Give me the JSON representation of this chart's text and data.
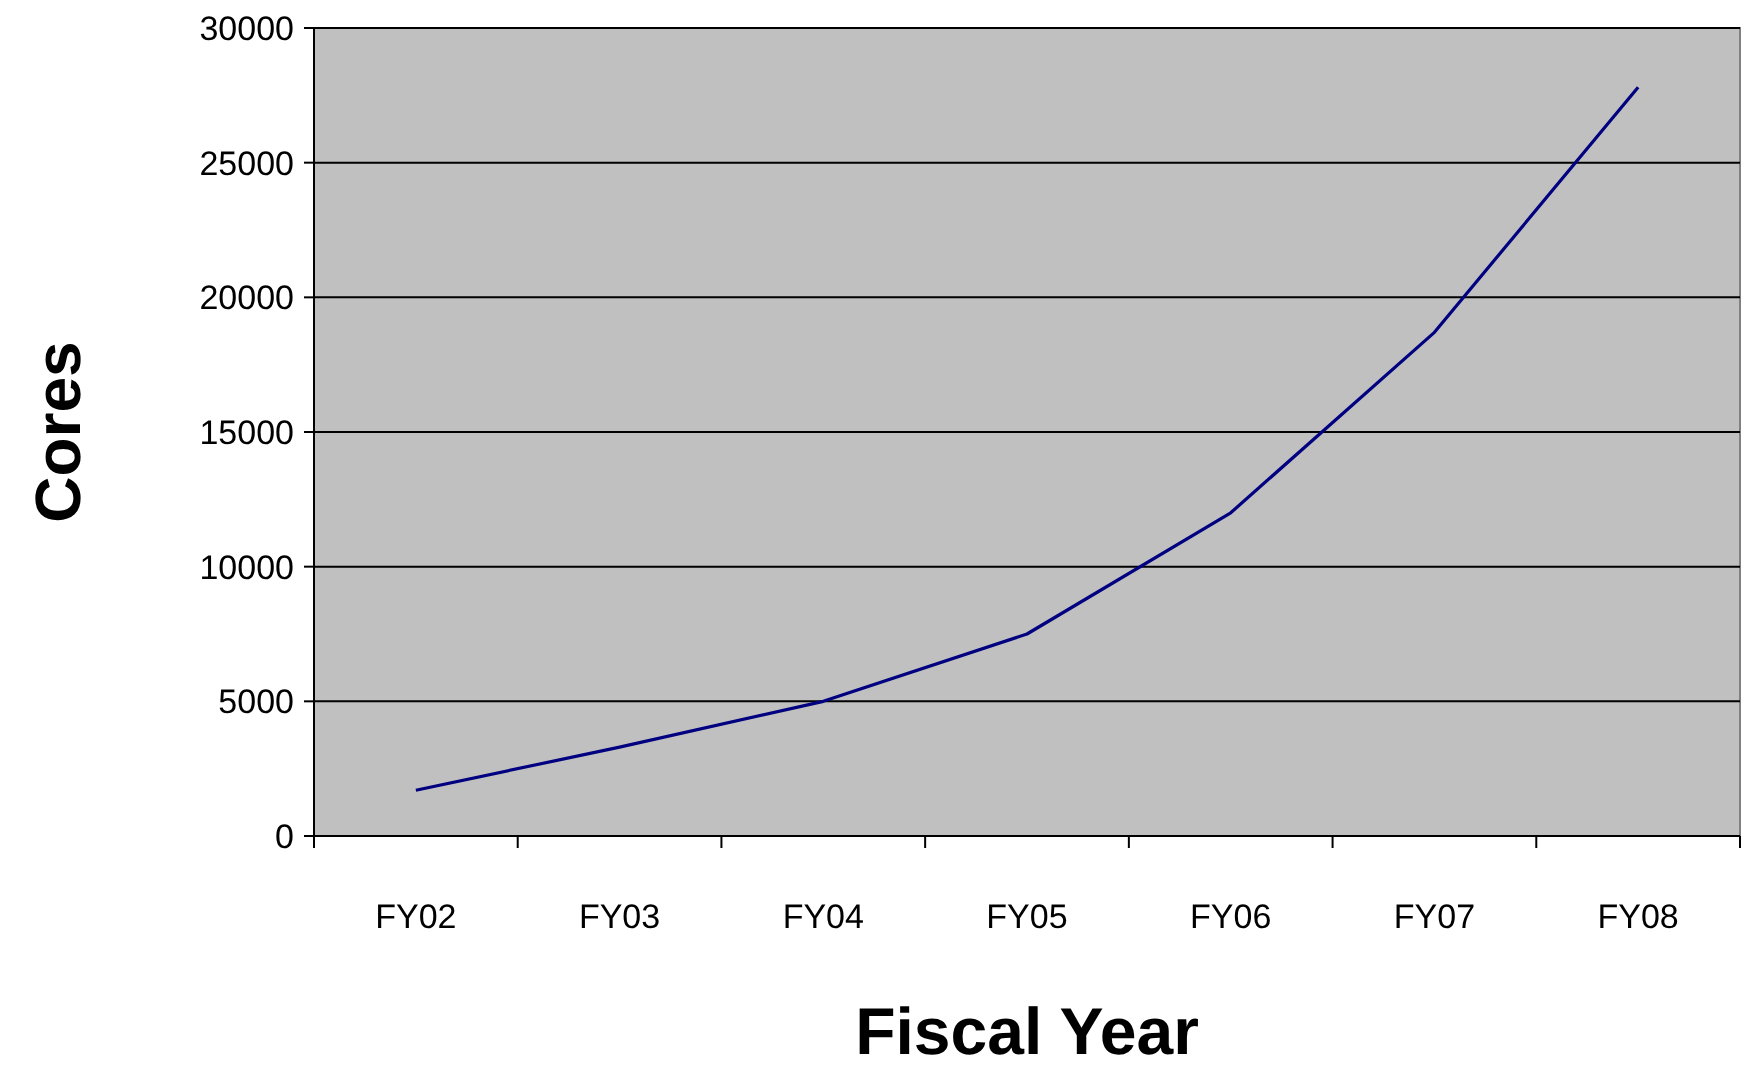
{
  "chart_data": {
    "type": "line",
    "xlabel": "Fiscal Year",
    "ylabel": "Cores",
    "categories": [
      "FY02",
      "FY03",
      "FY04",
      "FY05",
      "FY06",
      "FY07",
      "FY08"
    ],
    "series": [
      {
        "color": "#000080",
        "values": [
          1700,
          3300,
          5000,
          7500,
          12000,
          18700,
          27800
        ]
      }
    ],
    "ylim": [
      0,
      30000
    ],
    "yticks": [
      0,
      5000,
      10000,
      15000,
      20000,
      25000,
      30000
    ],
    "grid": "y",
    "marker": "none",
    "line_style": "solid"
  }
}
